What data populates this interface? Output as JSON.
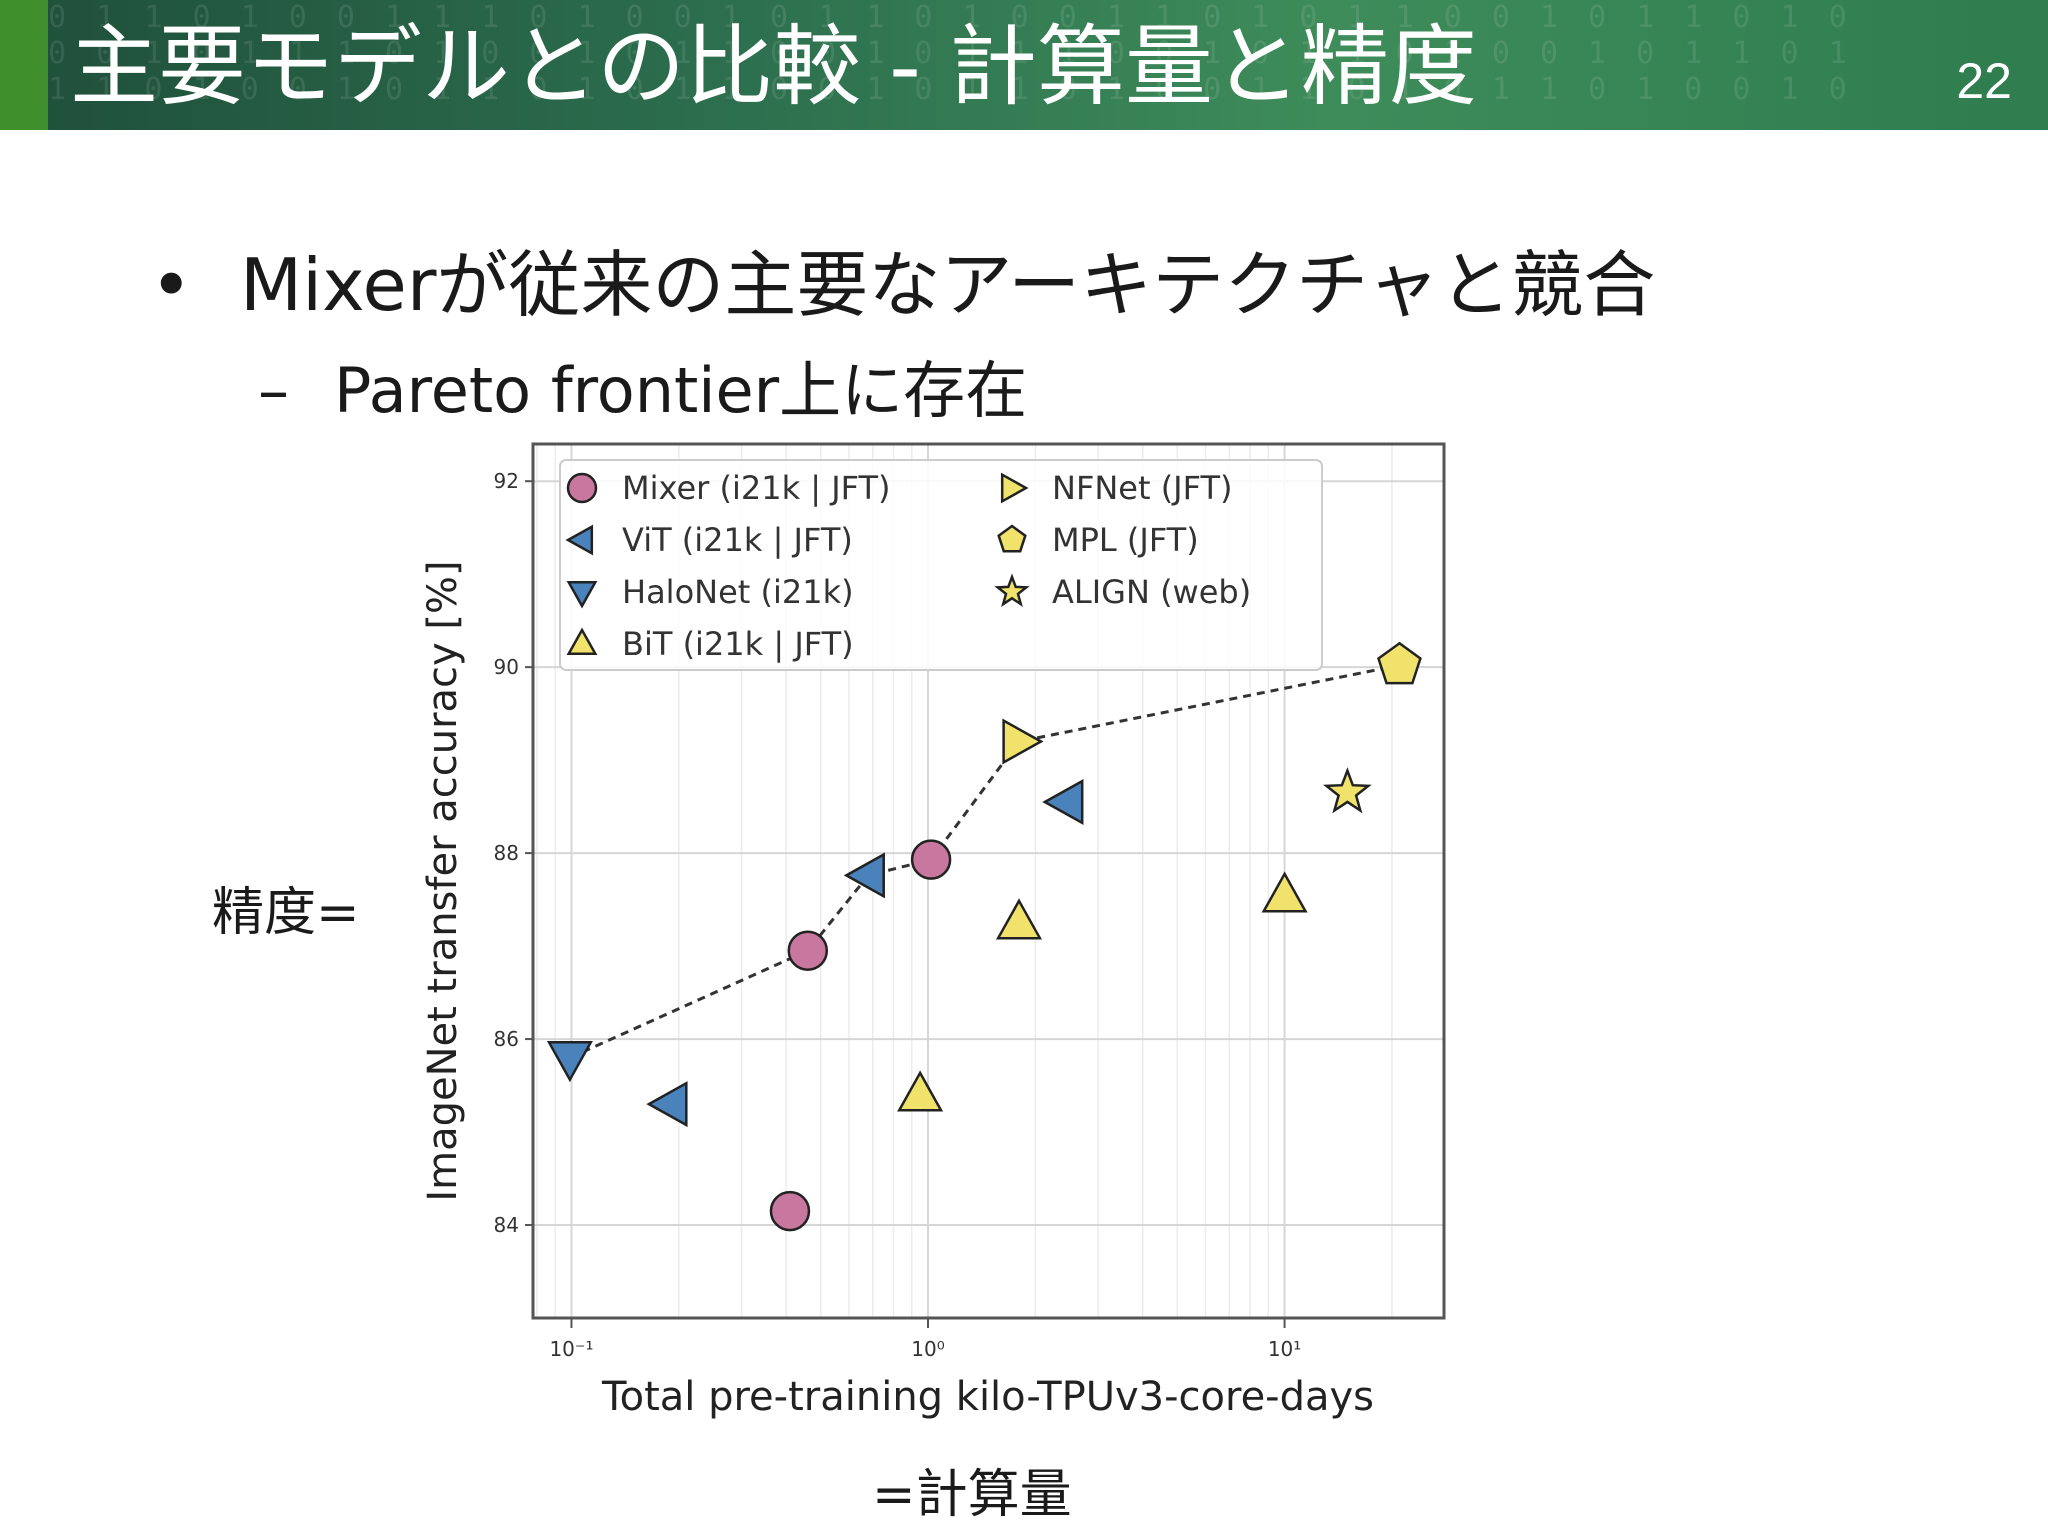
{
  "slide": {
    "title": "主要モデルとの比較 - 計算量と精度",
    "number": "22",
    "bullets": [
      {
        "text": "Mixerが従来の主要なアーキテクチャと競合"
      },
      {
        "text": "Pareto frontier上に存在"
      }
    ],
    "y_annotation": "精度=",
    "x_annotation": "=計算量"
  },
  "chart_data": {
    "type": "scatter",
    "xlabel": "Total pre-training kilo-TPUv3-core-days",
    "ylabel": "ImageNet transfer accuracy [%]",
    "xscale": "log",
    "xlim": [
      0.078,
      28
    ],
    "ylim": [
      83,
      92.4
    ],
    "x_ticks": [
      0.1,
      1,
      10
    ],
    "x_tick_labels": [
      "10⁻¹",
      "10⁰",
      "10¹"
    ],
    "y_ticks": [
      84,
      86,
      88,
      90,
      92
    ],
    "y_tick_labels": [
      "84",
      "86",
      "88",
      "90",
      "92"
    ],
    "grid": true,
    "legend_position": "top",
    "series": [
      {
        "name": "Mixer (i21k | JFT)",
        "marker": "circle",
        "color": "#c8779e",
        "points": [
          [
            0.41,
            84.15
          ],
          [
            0.46,
            86.95
          ],
          [
            1.02,
            87.93
          ]
        ]
      },
      {
        "name": "ViT (i21k | JFT)",
        "marker": "triangle-left",
        "color": "#4a82bb",
        "points": [
          [
            0.19,
            85.3
          ],
          [
            0.68,
            87.76
          ],
          [
            2.45,
            88.55
          ]
        ]
      },
      {
        "name": "HaloNet (i21k)",
        "marker": "triangle-down",
        "color": "#4a82bb",
        "points": [
          [
            0.099,
            85.8
          ]
        ]
      },
      {
        "name": "BiT (i21k | JFT)",
        "marker": "triangle-up",
        "color": "#f0e26a",
        "points": [
          [
            0.95,
            85.4
          ],
          [
            1.8,
            87.25
          ],
          [
            10.0,
            87.54
          ]
        ]
      },
      {
        "name": "NFNet (JFT)",
        "marker": "triangle-right",
        "color": "#f0e26a",
        "points": [
          [
            1.8,
            89.2
          ]
        ]
      },
      {
        "name": "MPL (JFT)",
        "marker": "pentagon",
        "color": "#f0e26a",
        "points": [
          [
            21.0,
            90.02
          ]
        ]
      },
      {
        "name": "ALIGN (web)",
        "marker": "star",
        "color": "#f0e26a",
        "points": [
          [
            15.0,
            88.65
          ]
        ]
      }
    ],
    "pareto_frontier": [
      [
        0.099,
        85.8
      ],
      [
        0.46,
        86.95
      ],
      [
        0.68,
        87.76
      ],
      [
        1.02,
        87.93
      ],
      [
        1.8,
        89.2
      ],
      [
        21.0,
        90.02
      ]
    ]
  }
}
